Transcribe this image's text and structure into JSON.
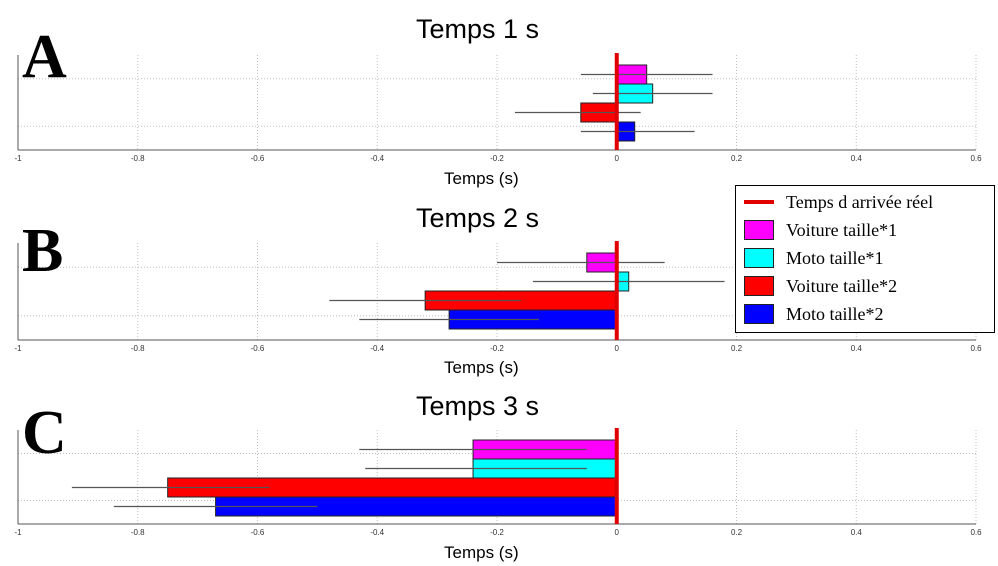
{
  "chart_data": [
    {
      "type": "bar",
      "orientation": "horizontal",
      "panel_letter": "A",
      "title": "Temps 1 s",
      "xlabel": "Temps (s)",
      "xlim": [
        -1,
        0.6
      ],
      "xticks": [
        "-1",
        "-0.8",
        "-0.6",
        "-0.4",
        "-0.2",
        "0",
        "0.2",
        "0.4",
        "0.6"
      ],
      "reference_x": 0,
      "series": [
        {
          "name": "Voiture taille*1",
          "value": 0.05,
          "err_low": -0.06,
          "err_high": 0.16
        },
        {
          "name": "Moto taille*1",
          "value": 0.06,
          "err_low": -0.04,
          "err_high": 0.16
        },
        {
          "name": "Voiture taille*2",
          "value": -0.06,
          "err_low": -0.17,
          "err_high": 0.04
        },
        {
          "name": "Moto taille*2",
          "value": 0.03,
          "err_low": -0.06,
          "err_high": 0.13
        }
      ]
    },
    {
      "type": "bar",
      "orientation": "horizontal",
      "panel_letter": "B",
      "title": "Temps 2 s",
      "xlabel": "Temps (s)",
      "xlim": [
        -1,
        0.6
      ],
      "xticks": [
        "-1",
        "-0.8",
        "-0.6",
        "-0.4",
        "-0.2",
        "0",
        "0.2",
        "0.4",
        "0.6"
      ],
      "reference_x": 0,
      "series": [
        {
          "name": "Voiture taille*1",
          "value": -0.05,
          "err_low": -0.2,
          "err_high": 0.08
        },
        {
          "name": "Moto taille*1",
          "value": 0.02,
          "err_low": -0.14,
          "err_high": 0.18
        },
        {
          "name": "Voiture taille*2",
          "value": -0.32,
          "err_low": -0.48,
          "err_high": -0.16
        },
        {
          "name": "Moto taille*2",
          "value": -0.28,
          "err_low": -0.43,
          "err_high": -0.13
        }
      ]
    },
    {
      "type": "bar",
      "orientation": "horizontal",
      "panel_letter": "C",
      "title": "Temps 3 s",
      "xlabel": "Temps (s)",
      "xlim": [
        -1,
        0.6
      ],
      "xticks": [
        "-1",
        "-0.8",
        "-0.6",
        "-0.4",
        "-0.2",
        "0",
        "0.2",
        "0.4",
        "0.6"
      ],
      "reference_x": 0,
      "series": [
        {
          "name": "Voiture taille*1",
          "value": -0.24,
          "err_low": -0.43,
          "err_high": -0.05
        },
        {
          "name": "Moto taille*1",
          "value": -0.24,
          "err_low": -0.42,
          "err_high": -0.05
        },
        {
          "name": "Voiture taille*2",
          "value": -0.75,
          "err_low": -0.91,
          "err_high": -0.58
        },
        {
          "name": "Moto taille*2",
          "value": -0.67,
          "err_low": -0.84,
          "err_high": -0.5
        }
      ]
    }
  ],
  "legend": {
    "placement": "right",
    "items": [
      {
        "label": "Temps d arrivée réel",
        "color": "#e00000",
        "kind": "line"
      },
      {
        "label": "Voiture taille*1",
        "color": "#ff00ff",
        "kind": "bar"
      },
      {
        "label": "Moto taille*1",
        "color": "#00ffff",
        "kind": "bar"
      },
      {
        "label": "Voiture taille*2",
        "color": "#ff0000",
        "kind": "bar"
      },
      {
        "label": "Moto taille*2",
        "color": "#0000ff",
        "kind": "bar"
      }
    ]
  },
  "colors": {
    "Voiture taille*1": "#ff00ff",
    "Moto taille*1": "#00ffff",
    "Voiture taille*2": "#ff0000",
    "Moto taille*2": "#0000ff",
    "reference_line": "#e00000",
    "error_bar": "#555555",
    "grid": "#bfbfbf"
  }
}
